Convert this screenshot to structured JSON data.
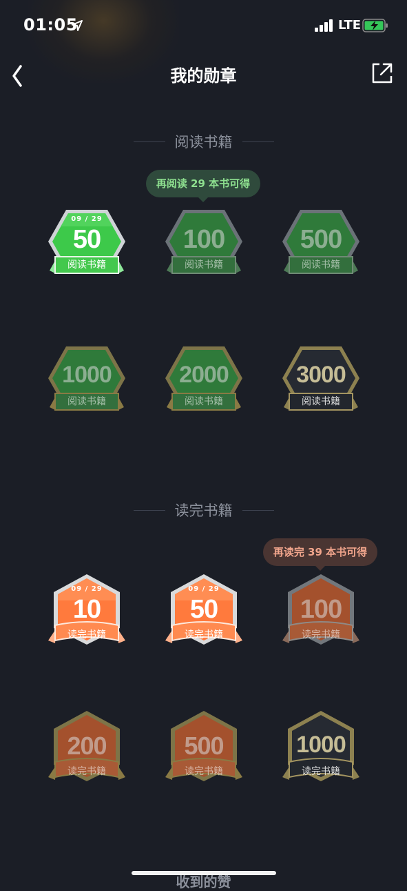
{
  "status_bar": {
    "time": "01:05",
    "network": "LTE"
  },
  "nav": {
    "title": "我的勋章"
  },
  "sections": [
    {
      "title": "阅读书籍",
      "tooltip": "再阅读 29 本书可得",
      "badges": [
        {
          "date": "09 / 29",
          "value": "50",
          "label": "阅读书籍",
          "state": "earned",
          "color": "green"
        },
        {
          "value": "100",
          "label": "阅读书籍",
          "state": "locked",
          "color": "green"
        },
        {
          "value": "500",
          "label": "阅读书籍",
          "state": "locked",
          "color": "green"
        },
        {
          "value": "1000",
          "label": "阅读书籍",
          "state": "locked",
          "color": "green"
        },
        {
          "value": "2000",
          "label": "阅读书籍",
          "state": "locked",
          "color": "green"
        },
        {
          "value": "3000",
          "label": "阅读书籍",
          "state": "locked",
          "color": "dark"
        }
      ]
    },
    {
      "title": "读完书籍",
      "tooltip": "再读完 39 本书可得",
      "badges": [
        {
          "date": "09 / 29",
          "value": "10",
          "label": "读完书籍",
          "state": "earned",
          "color": "orange"
        },
        {
          "date": "09 / 29",
          "value": "50",
          "label": "读完书籍",
          "state": "earned",
          "color": "orange"
        },
        {
          "value": "100",
          "label": "读完书籍",
          "state": "locked",
          "color": "orange"
        },
        {
          "value": "200",
          "label": "读完书籍",
          "state": "locked",
          "color": "orange"
        },
        {
          "value": "500",
          "label": "读完书籍",
          "state": "locked",
          "color": "orange"
        },
        {
          "value": "1000",
          "label": "读完书籍",
          "state": "locked",
          "color": "dark"
        }
      ]
    }
  ],
  "next_section": {
    "title": "收到的赞"
  },
  "colors": {
    "background": "#1b1e26",
    "green": "#3cc44a",
    "orange": "#ff7a3d",
    "gold": "#b8a160",
    "dark": "#2a2e36"
  }
}
